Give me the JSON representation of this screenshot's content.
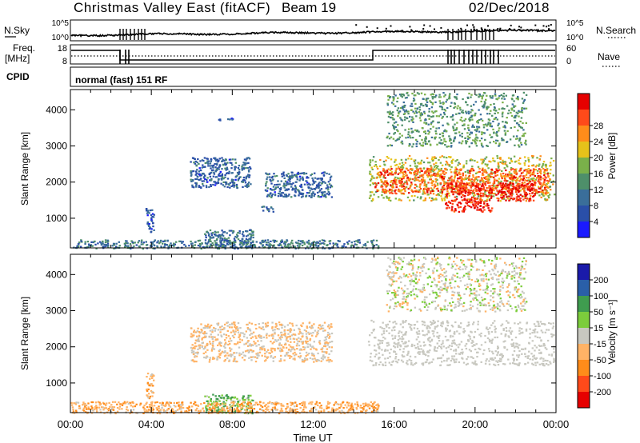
{
  "header": {
    "title": "Christmas Valley East (fitACF)",
    "beam": "Beam 19",
    "date": "02/Dec/2018"
  },
  "status_panel": {
    "nsky_label": "N.Sky",
    "nsearch_label": "N.Search",
    "freq_label_1": "Freq.",
    "freq_label_2": "[MHz]",
    "nave_label": "Nave",
    "cpid_label": "CPID",
    "cpid_value": "normal (fast) 151 RF",
    "noise_ticks": [
      "10^5",
      "10^0"
    ],
    "freq_ticks": [
      "18",
      "8"
    ],
    "nave_ticks": [
      "60",
      "0"
    ]
  },
  "colors": {
    "power_scale": [
      "#1a1aff",
      "#2a4fa8",
      "#3a6e9a",
      "#4e8f6a",
      "#7ab04a",
      "#e6c21a",
      "#ff8c1a",
      "#ff4a1a",
      "#e60000"
    ],
    "velocity_scale": [
      "#e60000",
      "#ff4a1a",
      "#ff8c1a",
      "#ffb366",
      "#c8c8c0",
      "#7ccd3c",
      "#3f9c4f",
      "#2a5fa8",
      "#1a1aaa"
    ],
    "ground_scatter": "#c8c8c0"
  },
  "chart_data": [
    {
      "type": "heatmap",
      "panel": "power",
      "xlabel": "",
      "ylabel": "Slant Range [km]",
      "x_ticks": [
        "00:00",
        "04:00",
        "08:00",
        "12:00",
        "16:00",
        "20:00",
        "00:00"
      ],
      "y_ticks": [
        "1000",
        "2000",
        "3000",
        "4000"
      ],
      "xlim_hours": [
        0,
        24
      ],
      "ylim_km": [
        180,
        4560
      ],
      "colorbar": {
        "label": "Power [dB]",
        "ticks": [
          "4",
          "8",
          "12",
          "16",
          "20",
          "24",
          "28"
        ],
        "range": [
          0,
          30
        ]
      },
      "regions": [
        {
          "t": [
            5.9,
            8.9
          ],
          "r": [
            1850,
            2700
          ],
          "value": 7
        },
        {
          "t": [
            9.6,
            12.9
          ],
          "r": [
            1600,
            2300
          ],
          "value": 7
        },
        {
          "t": [
            7.3,
            8.0
          ],
          "r": [
            3700,
            3800
          ],
          "value": 6
        },
        {
          "t": [
            9.3,
            10.0
          ],
          "r": [
            1200,
            1350
          ],
          "value": 7
        },
        {
          "t": [
            3.7,
            4.1
          ],
          "r": [
            600,
            1300
          ],
          "value": 6
        },
        {
          "t": [
            6.6,
            9.0
          ],
          "r": [
            180,
            700
          ],
          "value": 8
        },
        {
          "t": [
            0.0,
            15.2
          ],
          "r": [
            180,
            420
          ],
          "value": 9
        },
        {
          "t": [
            14.7,
            23.9
          ],
          "r": [
            1500,
            2750
          ],
          "value": 17
        },
        {
          "t": [
            15.0,
            23.6
          ],
          "r": [
            1700,
            2400
          ],
          "value": 24
        },
        {
          "t": [
            18.5,
            20.8
          ],
          "r": [
            1200,
            2000
          ],
          "value": 27
        },
        {
          "t": [
            21.0,
            23.0
          ],
          "r": [
            1500,
            2000
          ],
          "value": 28
        },
        {
          "t": [
            15.6,
            22.5
          ],
          "r": [
            3000,
            4500
          ],
          "value": 12
        }
      ]
    },
    {
      "type": "heatmap",
      "panel": "velocity",
      "xlabel": "Time UT",
      "ylabel": "Slant Range [km]",
      "x_ticks": [
        "00:00",
        "04:00",
        "08:00",
        "12:00",
        "16:00",
        "20:00",
        "00:00"
      ],
      "y_ticks": [
        "1000",
        "2000",
        "3000",
        "4000"
      ],
      "xlim_hours": [
        0,
        24
      ],
      "ylim_km": [
        180,
        4560
      ],
      "colorbar": {
        "label": "Velocity [m s⁻¹]",
        "ticks": [
          "200",
          "100",
          "50",
          "15",
          "-15",
          "-50",
          "-100",
          "-200"
        ],
        "range": [
          -250,
          250
        ]
      },
      "regions": [
        {
          "t": [
            14.7,
            23.9
          ],
          "r": [
            1500,
            2750
          ],
          "value": 0,
          "ground_scatter": true
        },
        {
          "t": [
            15.6,
            22.5
          ],
          "r": [
            3000,
            4500
          ],
          "value": 0
        },
        {
          "t": [
            5.9,
            12.9
          ],
          "r": [
            1600,
            2700
          ],
          "value": -20
        },
        {
          "t": [
            6.6,
            9.0
          ],
          "r": [
            180,
            700
          ],
          "value": 40
        },
        {
          "t": [
            0.0,
            15.2
          ],
          "r": [
            180,
            500
          ],
          "value": -40
        },
        {
          "t": [
            3.7,
            4.1
          ],
          "r": [
            600,
            1300
          ],
          "value": -40
        }
      ]
    }
  ]
}
